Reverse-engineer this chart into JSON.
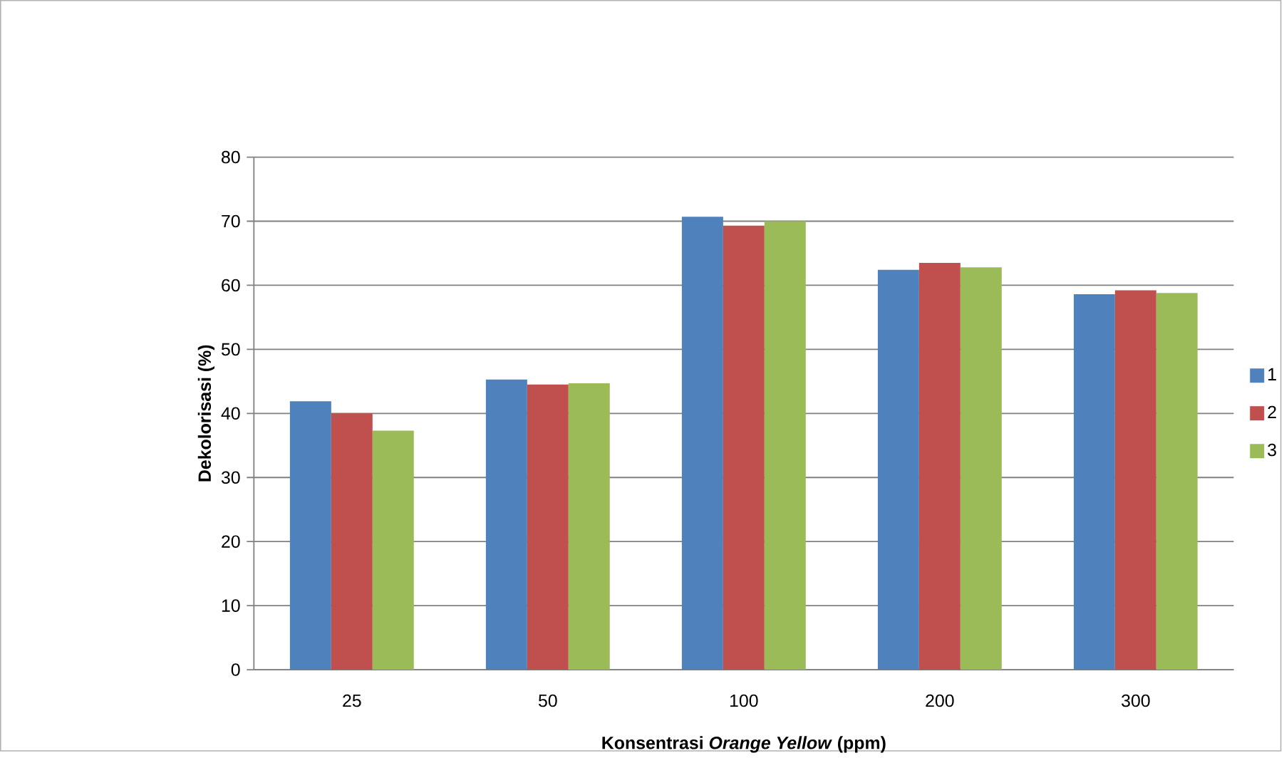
{
  "chart_data": {
    "type": "bar",
    "xlabel": "Konsentrasi *Orange Yellow* (ppm)",
    "ylabel": "Dekolorisasi (%)",
    "categories": [
      "25",
      "50",
      "100",
      "200",
      "300"
    ],
    "series": [
      {
        "name": "1",
        "color": "#4f81bd",
        "values": [
          41.9,
          45.3,
          70.7,
          62.4,
          58.6
        ]
      },
      {
        "name": "2",
        "color": "#c0504d",
        "values": [
          40.0,
          44.5,
          69.3,
          63.5,
          59.2
        ]
      },
      {
        "name": "3",
        "color": "#9bbb59",
        "values": [
          37.3,
          44.7,
          70.0,
          62.8,
          58.8
        ]
      }
    ],
    "ylim": [
      0,
      80
    ],
    "yticks": [
      0,
      10,
      20,
      30,
      40,
      50,
      60,
      70,
      80
    ],
    "grid": "y",
    "legend": "right"
  }
}
